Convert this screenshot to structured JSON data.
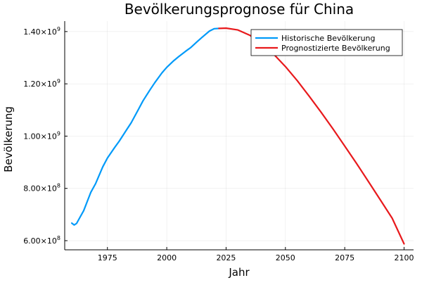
{
  "chart_data": {
    "type": "line",
    "title": "Bevölkerungsprognose für China",
    "xlabel": "Jahr",
    "ylabel": "Bevölkerung",
    "xlim": [
      1957,
      2104
    ],
    "ylim": [
      565000000,
      1440000000
    ],
    "grid": true,
    "legend_position": "top-right",
    "x_ticks": [
      {
        "value": 1975,
        "label": "1975"
      },
      {
        "value": 2000,
        "label": "2000"
      },
      {
        "value": 2025,
        "label": "2025"
      },
      {
        "value": 2050,
        "label": "2050"
      },
      {
        "value": 2075,
        "label": "2075"
      },
      {
        "value": 2100,
        "label": "2100"
      }
    ],
    "y_ticks": [
      {
        "value": 600000000,
        "mantissa": "6.00×10",
        "exponent": "8"
      },
      {
        "value": 800000000,
        "mantissa": "8.00×10",
        "exponent": "8"
      },
      {
        "value": 1000000000,
        "mantissa": "1.00×10",
        "exponent": "9"
      },
      {
        "value": 1200000000,
        "mantissa": "1.20×10",
        "exponent": "9"
      },
      {
        "value": 1400000000,
        "mantissa": "1.40×10",
        "exponent": "9"
      }
    ],
    "series": [
      {
        "name": "Historische Bevölkerung",
        "color": "#009af9",
        "x": [
          1960,
          1961,
          1962,
          1963,
          1965,
          1968,
          1970,
          1973,
          1975,
          1978,
          1980,
          1983,
          1985,
          1988,
          1990,
          1993,
          1995,
          1998,
          2000,
          2003,
          2005,
          2008,
          2010,
          2013,
          2015,
          2018,
          2020,
          2022
        ],
        "y": [
          667000000,
          660000000,
          666000000,
          682000000,
          715000000,
          785000000,
          818000000,
          882000000,
          916000000,
          956000000,
          981000000,
          1023000000,
          1051000000,
          1101000000,
          1135000000,
          1178000000,
          1205000000,
          1242000000,
          1263000000,
          1289000000,
          1304000000,
          1325000000,
          1338000000,
          1363000000,
          1379000000,
          1402000000,
          1411000000,
          1412000000
        ]
      },
      {
        "name": "Prognostizierte Bevölkerung",
        "color": "#e8191c",
        "x": [
          2022,
          2025,
          2030,
          2035,
          2040,
          2045,
          2050,
          2055,
          2060,
          2065,
          2070,
          2075,
          2080,
          2085,
          2090,
          2095,
          2100
        ],
        "y": [
          1412000000,
          1413000000,
          1406000000,
          1386000000,
          1355000000,
          1314000000,
          1266000000,
          1212000000,
          1153000000,
          1092000000,
          1028000000,
          962000000,
          895000000,
          826000000,
          756000000,
          686000000,
          588000000
        ]
      }
    ]
  }
}
